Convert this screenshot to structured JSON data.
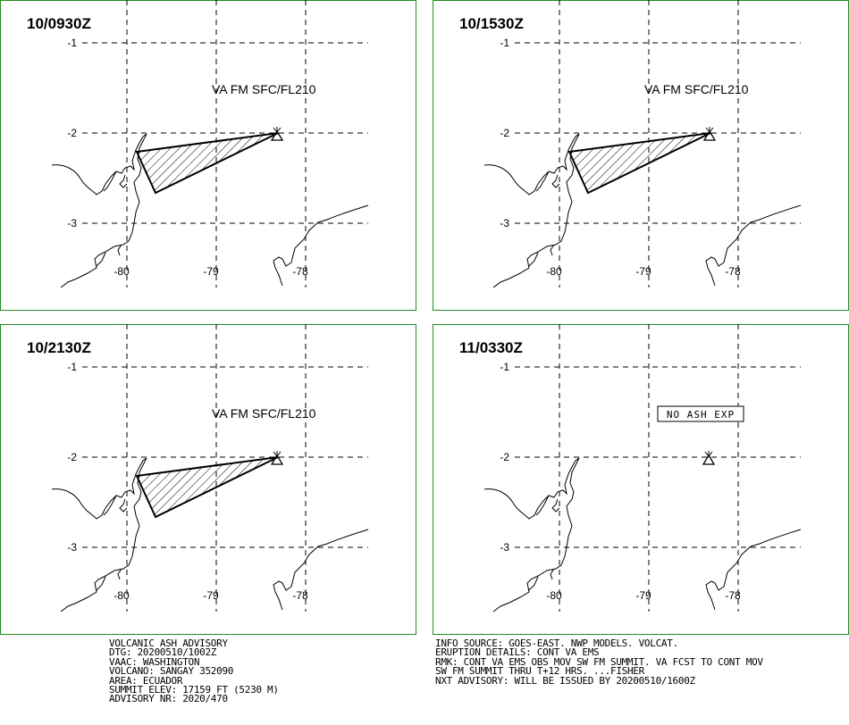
{
  "colors": {
    "frame": "#228B22",
    "ink": "#000000",
    "background": "#FFFFFF"
  },
  "axis": {
    "lat_labels": [
      "-1",
      "-2",
      "-3"
    ],
    "lon_labels": [
      "-80",
      "-79",
      "-78"
    ]
  },
  "panels": [
    {
      "time": "10/0930Z",
      "label": "VA FM SFC/FL210",
      "ash_polygon": true,
      "no_ash": false
    },
    {
      "time": "10/1530Z",
      "label": "VA FM SFC/FL210",
      "ash_polygon": true,
      "no_ash": false
    },
    {
      "time": "10/2130Z",
      "label": "VA FM SFC/FL210",
      "ash_polygon": true,
      "no_ash": false
    },
    {
      "time": "11/0330Z",
      "label": "NO ASH EXP",
      "ash_polygon": false,
      "no_ash": true
    }
  ],
  "advisory": {
    "title": "VOLCANIC ASH ADVISORY",
    "dtg": "DTG: 20200510/1002Z",
    "vaac": "VAAC: WASHINGTON",
    "volcano": "VOLCANO: SANGAY 352090",
    "area": "AREA: ECUADOR",
    "summit": "SUMMIT ELEV: 17159 FT (5230 M)",
    "advisory_nr": "ADVISORY NR: 2020/470"
  },
  "details": {
    "info_source": "INFO SOURCE: GOES-EAST. NWP MODELS. VOLCAT.",
    "eruption": "ERUPTION DETAILS: CONT VA EMS",
    "rmk1": "RMK: CONT VA EMS OBS MOV SW FM SUMMIT. VA FCST TO CONT MOV",
    "rmk2": "SW FM SUMMIT THRU T+12 HRS. ...FISHER",
    "next": "NXT ADVISORY: WILL BE ISSUED BY 20200510/1600Z"
  }
}
